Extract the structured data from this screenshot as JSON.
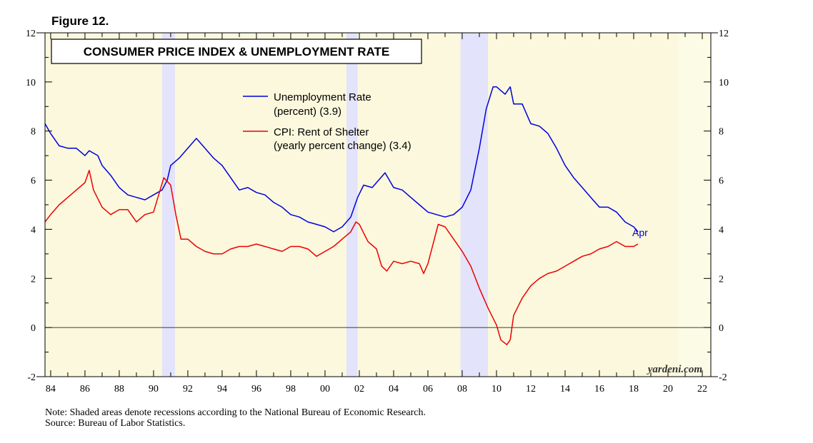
{
  "figure_label": "Figure 12.",
  "chart_data": {
    "type": "line",
    "title": "CONSUMER PRICE INDEX & UNEMPLOYMENT RATE",
    "xlabel": "",
    "ylabel": "",
    "xlim": [
      1983.67,
      2022.5
    ],
    "ylim": [
      -2,
      12
    ],
    "x_ticks": [
      {
        "year": 1984,
        "label": "84"
      },
      {
        "year": 1986,
        "label": "86"
      },
      {
        "year": 1988,
        "label": "88"
      },
      {
        "year": 1990,
        "label": "90"
      },
      {
        "year": 1992,
        "label": "92"
      },
      {
        "year": 1994,
        "label": "94"
      },
      {
        "year": 1996,
        "label": "96"
      },
      {
        "year": 1998,
        "label": "98"
      },
      {
        "year": 2000,
        "label": "00"
      },
      {
        "year": 2002,
        "label": "02"
      },
      {
        "year": 2004,
        "label": "04"
      },
      {
        "year": 2006,
        "label": "06"
      },
      {
        "year": 2008,
        "label": "08"
      },
      {
        "year": 2010,
        "label": "10"
      },
      {
        "year": 2012,
        "label": "12"
      },
      {
        "year": 2014,
        "label": "14"
      },
      {
        "year": 2016,
        "label": "16"
      },
      {
        "year": 2018,
        "label": "18"
      },
      {
        "year": 2020,
        "label": "20"
      },
      {
        "year": 2022,
        "label": "22"
      }
    ],
    "y_ticks": [
      -2,
      0,
      2,
      4,
      6,
      8,
      10,
      12
    ],
    "data_end": 2020.58,
    "recessions": [
      [
        1990.5,
        1991.25
      ],
      [
        2001.25,
        2001.9
      ],
      [
        2007.9,
        2009.5
      ]
    ],
    "series": [
      {
        "name": "Unemployment Rate",
        "name_line2": "(percent) (3.9)",
        "color": "#0000dd",
        "end_label": "Apr",
        "points": [
          [
            1983.67,
            8.3
          ],
          [
            1984.0,
            7.9
          ],
          [
            1984.5,
            7.4
          ],
          [
            1985.0,
            7.3
          ],
          [
            1985.5,
            7.3
          ],
          [
            1986.0,
            7.0
          ],
          [
            1986.25,
            7.2
          ],
          [
            1986.75,
            7.0
          ],
          [
            1987.0,
            6.6
          ],
          [
            1987.5,
            6.2
          ],
          [
            1988.0,
            5.7
          ],
          [
            1988.5,
            5.4
          ],
          [
            1989.0,
            5.3
          ],
          [
            1989.5,
            5.2
          ],
          [
            1990.0,
            5.4
          ],
          [
            1990.5,
            5.6
          ],
          [
            1990.8,
            6.0
          ],
          [
            1991.0,
            6.6
          ],
          [
            1991.5,
            6.9
          ],
          [
            1992.0,
            7.3
          ],
          [
            1992.5,
            7.7
          ],
          [
            1993.0,
            7.3
          ],
          [
            1993.5,
            6.9
          ],
          [
            1994.0,
            6.6
          ],
          [
            1994.5,
            6.1
          ],
          [
            1995.0,
            5.6
          ],
          [
            1995.5,
            5.7
          ],
          [
            1996.0,
            5.5
          ],
          [
            1996.5,
            5.4
          ],
          [
            1997.0,
            5.1
          ],
          [
            1997.5,
            4.9
          ],
          [
            1998.0,
            4.6
          ],
          [
            1998.5,
            4.5
          ],
          [
            1999.0,
            4.3
          ],
          [
            1999.5,
            4.2
          ],
          [
            2000.0,
            4.1
          ],
          [
            2000.5,
            3.9
          ],
          [
            2001.0,
            4.1
          ],
          [
            2001.5,
            4.5
          ],
          [
            2001.9,
            5.3
          ],
          [
            2002.25,
            5.8
          ],
          [
            2002.75,
            5.7
          ],
          [
            2003.0,
            5.9
          ],
          [
            2003.5,
            6.3
          ],
          [
            2004.0,
            5.7
          ],
          [
            2004.5,
            5.6
          ],
          [
            2005.0,
            5.3
          ],
          [
            2005.5,
            5.0
          ],
          [
            2006.0,
            4.7
          ],
          [
            2006.5,
            4.6
          ],
          [
            2007.0,
            4.5
          ],
          [
            2007.5,
            4.6
          ],
          [
            2008.0,
            4.9
          ],
          [
            2008.5,
            5.6
          ],
          [
            2009.0,
            7.3
          ],
          [
            2009.4,
            8.9
          ],
          [
            2009.8,
            9.8
          ],
          [
            2010.0,
            9.8
          ],
          [
            2010.5,
            9.5
          ],
          [
            2010.8,
            9.8
          ],
          [
            2011.0,
            9.1
          ],
          [
            2011.5,
            9.1
          ],
          [
            2012.0,
            8.3
          ],
          [
            2012.5,
            8.2
          ],
          [
            2013.0,
            7.9
          ],
          [
            2013.5,
            7.3
          ],
          [
            2014.0,
            6.6
          ],
          [
            2014.5,
            6.1
          ],
          [
            2015.0,
            5.7
          ],
          [
            2015.5,
            5.3
          ],
          [
            2016.0,
            4.9
          ],
          [
            2016.5,
            4.9
          ],
          [
            2017.0,
            4.7
          ],
          [
            2017.5,
            4.3
          ],
          [
            2018.0,
            4.1
          ],
          [
            2018.25,
            3.9
          ]
        ]
      },
      {
        "name": "CPI: Rent of Shelter",
        "name_line2": "(yearly percent change) (3.4)",
        "color": "#ee0000",
        "points": [
          [
            1983.67,
            4.3
          ],
          [
            1984.0,
            4.6
          ],
          [
            1984.5,
            5.0
          ],
          [
            1985.0,
            5.3
          ],
          [
            1985.5,
            5.6
          ],
          [
            1986.0,
            5.9
          ],
          [
            1986.25,
            6.4
          ],
          [
            1986.5,
            5.6
          ],
          [
            1987.0,
            4.9
          ],
          [
            1987.5,
            4.6
          ],
          [
            1988.0,
            4.8
          ],
          [
            1988.5,
            4.8
          ],
          [
            1989.0,
            4.3
          ],
          [
            1989.5,
            4.6
          ],
          [
            1990.0,
            4.7
          ],
          [
            1990.3,
            5.4
          ],
          [
            1990.6,
            6.1
          ],
          [
            1991.0,
            5.8
          ],
          [
            1991.3,
            4.6
          ],
          [
            1991.6,
            3.6
          ],
          [
            1992.0,
            3.6
          ],
          [
            1992.5,
            3.3
          ],
          [
            1993.0,
            3.1
          ],
          [
            1993.5,
            3.0
          ],
          [
            1994.0,
            3.0
          ],
          [
            1994.5,
            3.2
          ],
          [
            1995.0,
            3.3
          ],
          [
            1995.5,
            3.3
          ],
          [
            1996.0,
            3.4
          ],
          [
            1996.5,
            3.3
          ],
          [
            1997.0,
            3.2
          ],
          [
            1997.5,
            3.1
          ],
          [
            1998.0,
            3.3
          ],
          [
            1998.5,
            3.3
          ],
          [
            1999.0,
            3.2
          ],
          [
            1999.5,
            2.9
          ],
          [
            2000.0,
            3.1
          ],
          [
            2000.5,
            3.3
          ],
          [
            2001.0,
            3.6
          ],
          [
            2001.5,
            3.9
          ],
          [
            2001.8,
            4.3
          ],
          [
            2002.0,
            4.2
          ],
          [
            2002.5,
            3.5
          ],
          [
            2003.0,
            3.2
          ],
          [
            2003.3,
            2.5
          ],
          [
            2003.6,
            2.3
          ],
          [
            2004.0,
            2.7
          ],
          [
            2004.5,
            2.6
          ],
          [
            2005.0,
            2.7
          ],
          [
            2005.5,
            2.6
          ],
          [
            2005.75,
            2.2
          ],
          [
            2006.0,
            2.6
          ],
          [
            2006.3,
            3.4
          ],
          [
            2006.6,
            4.2
          ],
          [
            2007.0,
            4.1
          ],
          [
            2007.5,
            3.6
          ],
          [
            2008.0,
            3.1
          ],
          [
            2008.5,
            2.5
          ],
          [
            2009.0,
            1.6
          ],
          [
            2009.5,
            0.8
          ],
          [
            2010.0,
            0.1
          ],
          [
            2010.25,
            -0.5
          ],
          [
            2010.6,
            -0.7
          ],
          [
            2010.8,
            -0.5
          ],
          [
            2011.0,
            0.5
          ],
          [
            2011.5,
            1.2
          ],
          [
            2012.0,
            1.7
          ],
          [
            2012.5,
            2.0
          ],
          [
            2013.0,
            2.2
          ],
          [
            2013.5,
            2.3
          ],
          [
            2014.0,
            2.5
          ],
          [
            2014.5,
            2.7
          ],
          [
            2015.0,
            2.9
          ],
          [
            2015.5,
            3.0
          ],
          [
            2016.0,
            3.2
          ],
          [
            2016.5,
            3.3
          ],
          [
            2017.0,
            3.5
          ],
          [
            2017.5,
            3.3
          ],
          [
            2018.0,
            3.3
          ],
          [
            2018.25,
            3.4
          ]
        ]
      }
    ]
  },
  "watermark": "yardeni.com",
  "note": "Note: Shaded areas denote recessions according to the National Bureau of Economic Research.",
  "source": "Source: Bureau of Labor Statistics."
}
